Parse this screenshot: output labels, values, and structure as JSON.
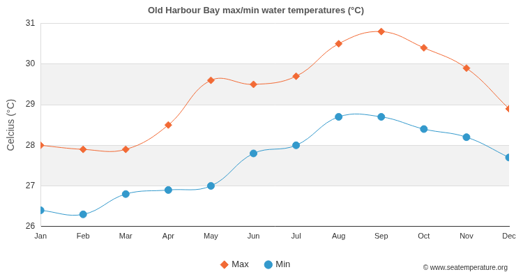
{
  "chart_data": {
    "type": "line",
    "title": "Old Harbour Bay max/min water temperatures (°C)",
    "y_label": "Celcius (°C)",
    "annotation": "© www.seatemperature.org",
    "categories": [
      "Jan",
      "Feb",
      "Mar",
      "Apr",
      "May",
      "Jun",
      "Jul",
      "Aug",
      "Sep",
      "Oct",
      "Nov",
      "Dec"
    ],
    "series": [
      {
        "name": "Max",
        "color": "#f26a35",
        "marker": "diamond",
        "line_style": "solid",
        "values": [
          28.0,
          27.9,
          27.9,
          28.5,
          29.6,
          29.5,
          29.7,
          30.5,
          30.8,
          30.4,
          29.9,
          28.9
        ]
      },
      {
        "name": "Min",
        "color": "#3399cc",
        "marker": "circle",
        "line_style": "solid",
        "values": [
          26.4,
          26.3,
          26.8,
          26.9,
          27.0,
          27.8,
          28.0,
          28.7,
          28.7,
          28.4,
          28.2,
          27.7
        ]
      }
    ],
    "ylim": [
      26,
      31
    ],
    "yticks": [
      26,
      27,
      28,
      29,
      30,
      31
    ],
    "grid": true,
    "legend": "bottom"
  }
}
